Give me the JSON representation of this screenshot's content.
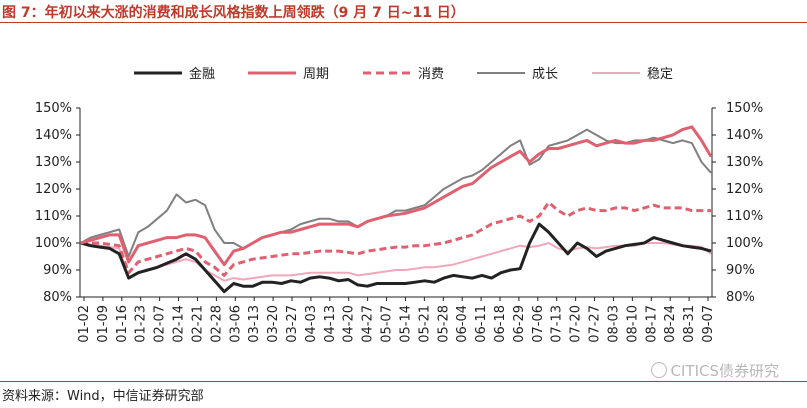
{
  "header": {
    "title": "图 7：年初以来大涨的消费和成长风格指数上周领跌（9 月 7 日~11 日）"
  },
  "footer": {
    "source": "资料来源：Wind，中信证券研究部",
    "watermark": "CITICS债券研究"
  },
  "colors": {
    "accent": "#c0392b",
    "finance": "#222222",
    "cycle": "#e06070",
    "consumer": "#e06070",
    "growth": "#808080",
    "stable": "#f0a8b8"
  },
  "chart_data": {
    "type": "line",
    "title": "",
    "xlabel": "",
    "ylabel": "",
    "ylim": [
      0.8,
      1.5
    ],
    "y_ticks": [
      "80%",
      "90%",
      "100%",
      "110%",
      "120%",
      "130%",
      "140%",
      "150%"
    ],
    "x_tick_labels": [
      "01-02",
      "01-09",
      "01-16",
      "01-23",
      "02-07",
      "02-14",
      "02-21",
      "02-28",
      "03-06",
      "03-13",
      "03-20",
      "03-27",
      "04-03",
      "04-13",
      "04-20",
      "04-27",
      "05-07",
      "05-14",
      "05-21",
      "05-28",
      "06-04",
      "06-11",
      "06-18",
      "06-29",
      "07-06",
      "07-13",
      "07-20",
      "07-27",
      "08-03",
      "08-10",
      "08-17",
      "08-24",
      "08-31",
      "09-07"
    ],
    "legend_position": "top",
    "grid": false,
    "series": [
      {
        "name": "金融",
        "style": "solid-thick",
        "values": [
          1.0,
          0.99,
          0.985,
          0.98,
          0.96,
          0.87,
          0.89,
          0.9,
          0.91,
          0.925,
          0.94,
          0.96,
          0.94,
          0.9,
          0.86,
          0.82,
          0.85,
          0.84,
          0.84,
          0.855,
          0.855,
          0.85,
          0.86,
          0.855,
          0.87,
          0.875,
          0.87,
          0.86,
          0.865,
          0.845,
          0.84,
          0.85,
          0.85,
          0.85,
          0.85,
          0.855,
          0.86,
          0.855,
          0.87,
          0.88,
          0.875,
          0.87,
          0.88,
          0.87,
          0.89,
          0.9,
          0.905,
          1.0,
          1.07,
          1.04,
          1.0,
          0.96,
          1.0,
          0.98,
          0.95,
          0.97,
          0.98,
          0.99,
          0.995,
          1.0,
          1.02,
          1.01,
          1.0,
          0.99,
          0.985,
          0.98,
          0.97
        ]
      },
      {
        "name": "周期",
        "style": "solid-thick",
        "values": [
          1.0,
          1.01,
          1.02,
          1.03,
          1.03,
          0.93,
          0.99,
          1.0,
          1.01,
          1.02,
          1.02,
          1.03,
          1.03,
          1.02,
          0.97,
          0.92,
          0.97,
          0.98,
          1.0,
          1.02,
          1.03,
          1.04,
          1.04,
          1.05,
          1.06,
          1.07,
          1.07,
          1.07,
          1.07,
          1.06,
          1.08,
          1.09,
          1.1,
          1.105,
          1.11,
          1.12,
          1.13,
          1.15,
          1.17,
          1.19,
          1.21,
          1.22,
          1.25,
          1.28,
          1.3,
          1.32,
          1.34,
          1.3,
          1.33,
          1.35,
          1.35,
          1.36,
          1.37,
          1.38,
          1.36,
          1.37,
          1.38,
          1.37,
          1.37,
          1.38,
          1.38,
          1.39,
          1.4,
          1.42,
          1.43,
          1.38,
          1.32
        ]
      },
      {
        "name": "消费",
        "style": "dashed-thick",
        "values": [
          1.0,
          1.0,
          1.0,
          0.995,
          0.99,
          0.89,
          0.93,
          0.94,
          0.95,
          0.96,
          0.97,
          0.98,
          0.97,
          0.93,
          0.91,
          0.88,
          0.92,
          0.93,
          0.94,
          0.945,
          0.95,
          0.955,
          0.96,
          0.96,
          0.965,
          0.97,
          0.97,
          0.97,
          0.965,
          0.96,
          0.97,
          0.975,
          0.98,
          0.985,
          0.985,
          0.99,
          0.99,
          0.995,
          1.0,
          1.01,
          1.02,
          1.03,
          1.05,
          1.07,
          1.08,
          1.09,
          1.1,
          1.08,
          1.1,
          1.15,
          1.12,
          1.1,
          1.12,
          1.13,
          1.12,
          1.12,
          1.13,
          1.13,
          1.12,
          1.13,
          1.14,
          1.13,
          1.13,
          1.13,
          1.12,
          1.12,
          1.12
        ]
      },
      {
        "name": "成长",
        "style": "solid-thin",
        "values": [
          1.0,
          1.02,
          1.03,
          1.04,
          1.05,
          0.95,
          1.04,
          1.06,
          1.09,
          1.12,
          1.18,
          1.15,
          1.16,
          1.14,
          1.05,
          1.0,
          1.0,
          0.98,
          1.0,
          1.02,
          1.03,
          1.04,
          1.05,
          1.07,
          1.08,
          1.09,
          1.09,
          1.08,
          1.08,
          1.06,
          1.08,
          1.09,
          1.1,
          1.12,
          1.12,
          1.13,
          1.14,
          1.17,
          1.2,
          1.22,
          1.24,
          1.25,
          1.27,
          1.3,
          1.33,
          1.36,
          1.38,
          1.29,
          1.31,
          1.36,
          1.37,
          1.38,
          1.4,
          1.42,
          1.4,
          1.38,
          1.37,
          1.37,
          1.38,
          1.38,
          1.39,
          1.38,
          1.37,
          1.38,
          1.37,
          1.3,
          1.26
        ]
      },
      {
        "name": "稳定",
        "style": "solid-thin",
        "values": [
          1.0,
          0.995,
          0.99,
          0.985,
          0.98,
          0.87,
          0.89,
          0.9,
          0.91,
          0.92,
          0.93,
          0.94,
          0.93,
          0.9,
          0.88,
          0.86,
          0.87,
          0.865,
          0.87,
          0.875,
          0.88,
          0.88,
          0.88,
          0.885,
          0.89,
          0.89,
          0.89,
          0.89,
          0.89,
          0.88,
          0.885,
          0.89,
          0.895,
          0.9,
          0.9,
          0.905,
          0.91,
          0.91,
          0.915,
          0.92,
          0.93,
          0.94,
          0.95,
          0.96,
          0.97,
          0.98,
          0.99,
          0.985,
          0.99,
          1.0,
          0.98,
          0.97,
          0.98,
          0.985,
          0.98,
          0.985,
          0.99,
          0.99,
          0.99,
          1.0,
          1.0,
          1.0,
          0.995,
          0.99,
          0.99,
          0.985,
          0.96
        ]
      }
    ]
  }
}
